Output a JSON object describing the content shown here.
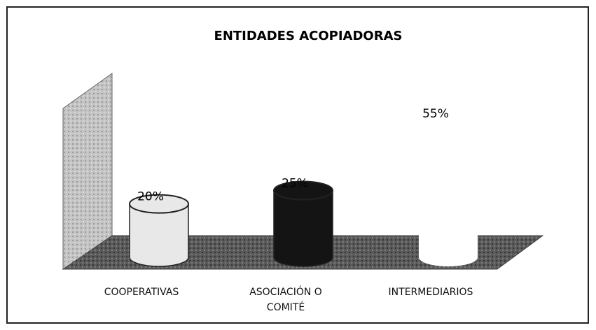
{
  "chart_data": {
    "type": "bar3d",
    "title": "ENTIDADES ACOPIADORAS",
    "categories": [
      "COOPERATIVAS",
      "ASOCIACIÓN O COMITÉ",
      "INTERMEDIARIOS"
    ],
    "values": [
      20,
      25,
      55
    ],
    "value_labels": [
      "20%",
      "25%",
      "55%"
    ],
    "colors": [
      "#e8e8e8",
      "#141414",
      "#ffffff"
    ]
  }
}
